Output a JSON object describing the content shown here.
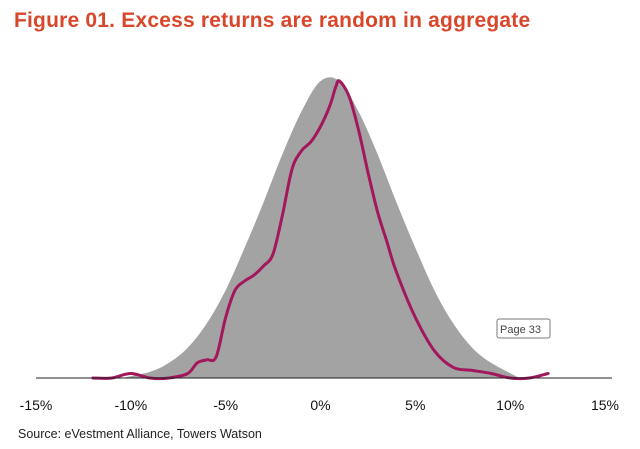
{
  "title": "Figure 01. Excess returns are random in aggregate",
  "source": "Source: eVestment Alliance, Towers Watson",
  "callout": "Page 33",
  "colors": {
    "title": "#d9472b",
    "area": "#a3a3a3",
    "line": "#a3175c",
    "axis": "#222222"
  },
  "chart_data": {
    "type": "area",
    "xlim": [
      -15,
      15
    ],
    "ylim": [
      0,
      1
    ],
    "x_ticks": [
      -15,
      -10,
      -5,
      0,
      5,
      10,
      15
    ],
    "x_tick_labels": [
      "-15%",
      "-10%",
      "-5%",
      "0%",
      "5%",
      "10%",
      "15%"
    ],
    "x_unit": "%",
    "grid": false,
    "series": [
      {
        "kind": "area",
        "x": [
          -10.5,
          -9,
          -8,
          -7,
          -6,
          -5,
          -4,
          -3,
          -2,
          -1,
          0,
          1,
          2,
          3,
          4,
          5,
          6,
          7,
          8,
          9,
          10.5
        ],
        "y": [
          0.0,
          0.02,
          0.05,
          0.1,
          0.18,
          0.29,
          0.43,
          0.58,
          0.74,
          0.88,
          0.98,
          0.98,
          0.88,
          0.74,
          0.58,
          0.43,
          0.29,
          0.18,
          0.1,
          0.05,
          0.0
        ]
      },
      {
        "kind": "line",
        "x": [
          -12,
          -11,
          -10,
          -9,
          -8,
          -7,
          -6.5,
          -6,
          -5.5,
          -5,
          -4.5,
          -4,
          -3.5,
          -3,
          -2.5,
          -2,
          -1.5,
          -1,
          -0.5,
          0,
          0.5,
          0.8,
          1,
          1.5,
          2,
          2.5,
          3,
          3.5,
          4,
          5,
          6,
          7,
          8,
          9,
          10,
          11,
          12
        ],
        "y": [
          0.0,
          0.0,
          0.015,
          0.0,
          0.0,
          0.015,
          0.05,
          0.06,
          0.07,
          0.2,
          0.29,
          0.32,
          0.34,
          0.37,
          0.41,
          0.54,
          0.69,
          0.75,
          0.78,
          0.83,
          0.9,
          0.96,
          0.98,
          0.93,
          0.82,
          0.68,
          0.55,
          0.45,
          0.35,
          0.2,
          0.09,
          0.035,
          0.025,
          0.015,
          0.0,
          0.0,
          0.015
        ]
      }
    ]
  }
}
